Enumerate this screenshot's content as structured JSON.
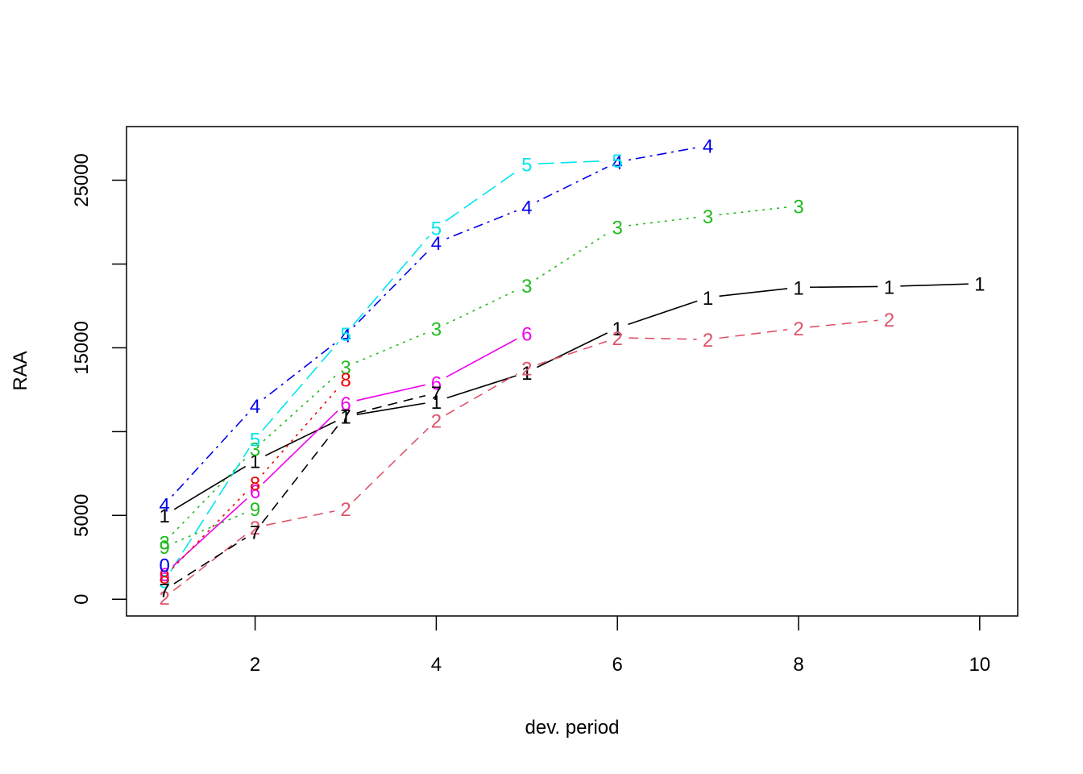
{
  "chart_data": {
    "type": "line",
    "title": "",
    "xlabel": "dev. period",
    "ylabel": "RAA",
    "xlim": [
      0.58,
      10.42
    ],
    "ylim": [
      -1000,
      28200
    ],
    "x_ticks": [
      2,
      4,
      6,
      8,
      10
    ],
    "y_ticks": [
      0,
      5000,
      15000,
      25000
    ],
    "y_minor_ticks": [
      10000,
      20000
    ],
    "grid": false,
    "legend": "none",
    "series": [
      {
        "label": "1",
        "color": "#000000",
        "dash": "none",
        "x": [
          1,
          2,
          3,
          4,
          5,
          6,
          7,
          8,
          9,
          10
        ],
        "y": [
          5012,
          8269,
          10907,
          11805,
          13539,
          16181,
          18009,
          18608,
          18662,
          18834
        ]
      },
      {
        "label": "2",
        "color": "#DF536B",
        "dash": "12,8",
        "x": [
          1,
          2,
          3,
          4,
          5,
          6,
          7,
          8,
          9
        ],
        "y": [
          106,
          4285,
          5396,
          10666,
          13782,
          15599,
          15496,
          16169,
          16704
        ]
      },
      {
        "label": "3",
        "color": "#22BB22",
        "dash": "3,6",
        "x": [
          1,
          2,
          3,
          4,
          5,
          6,
          7,
          8
        ],
        "y": [
          3410,
          8992,
          13873,
          16141,
          18735,
          22214,
          22863,
          23466
        ]
      },
      {
        "label": "4",
        "color": "#0000EE",
        "dash": "3,6,12,6",
        "x": [
          1,
          2,
          3,
          4,
          5,
          6,
          7
        ],
        "y": [
          5655,
          11555,
          15766,
          21266,
          23425,
          26083,
          27067
        ]
      },
      {
        "label": "5",
        "color": "#00E5EE",
        "dash": "20,8",
        "x": [
          1,
          2,
          3,
          4,
          5,
          6
        ],
        "y": [
          1092,
          9565,
          15836,
          22169,
          25955,
          26180
        ]
      },
      {
        "label": "6",
        "color": "#EE00EE",
        "dash": "none",
        "x": [
          1,
          2,
          3,
          4,
          5
        ],
        "y": [
          1513,
          6445,
          11702,
          12935,
          15852
        ]
      },
      {
        "label": "7",
        "color": "#000000",
        "dash": "12,8",
        "x": [
          1,
          2,
          3,
          4
        ],
        "y": [
          557,
          4020,
          10946,
          12314
        ]
      },
      {
        "label": "8",
        "color": "#EE0000",
        "dash": "3,6",
        "x": [
          1,
          2,
          3
        ],
        "y": [
          1351,
          6947,
          13112
        ]
      },
      {
        "label": "9",
        "color": "#22BB22",
        "dash": "3,6",
        "x": [
          1,
          2
        ],
        "y": [
          3133,
          5395
        ]
      },
      {
        "label": "0",
        "color": "#0000EE",
        "dash": "3,6,12,6",
        "x": [
          1
        ],
        "y": [
          2063
        ]
      }
    ]
  }
}
